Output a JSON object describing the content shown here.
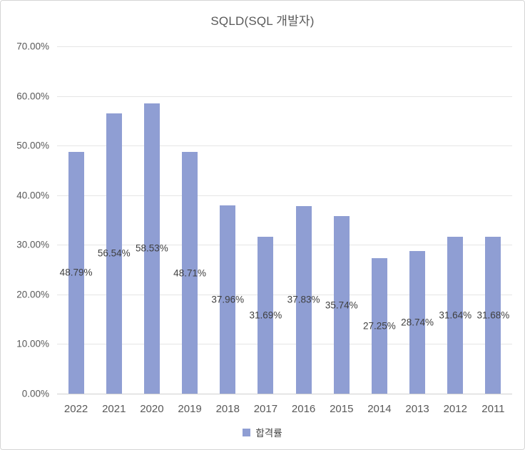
{
  "chart_data": {
    "type": "bar",
    "title": "SQLD(SQL 개발자)",
    "categories": [
      "2022",
      "2021",
      "2020",
      "2019",
      "2018",
      "2017",
      "2016",
      "2015",
      "2014",
      "2013",
      "2012",
      "2011"
    ],
    "series": [
      {
        "name": "합격률",
        "values": [
          48.79,
          56.54,
          58.53,
          48.71,
          37.96,
          31.69,
          37.83,
          35.74,
          27.25,
          28.74,
          31.64,
          31.68
        ]
      }
    ],
    "data_labels": [
      "48.79%",
      "56.54%",
      "58.53%",
      "48.71%",
      "37.96%",
      "31.69%",
      "37.83%",
      "35.74%",
      "27.25%",
      "28.74%",
      "31.64%",
      "31.68%"
    ],
    "data_label_position": "center",
    "xlabel": "",
    "ylabel": "",
    "ylim": [
      0,
      70
    ],
    "ytick_step": 10,
    "ytick_labels": [
      "0.00%",
      "10.00%",
      "20.00%",
      "30.00%",
      "40.00%",
      "50.00%",
      "60.00%",
      "70.00%"
    ],
    "grid": true,
    "legend": {
      "label": "합격률",
      "position": "bottom"
    },
    "bar_color": "#8f9ed3",
    "gridline_color": "#e5e5e5",
    "axis_text_color": "#595959",
    "label_text_color": "#3f3f3f"
  }
}
